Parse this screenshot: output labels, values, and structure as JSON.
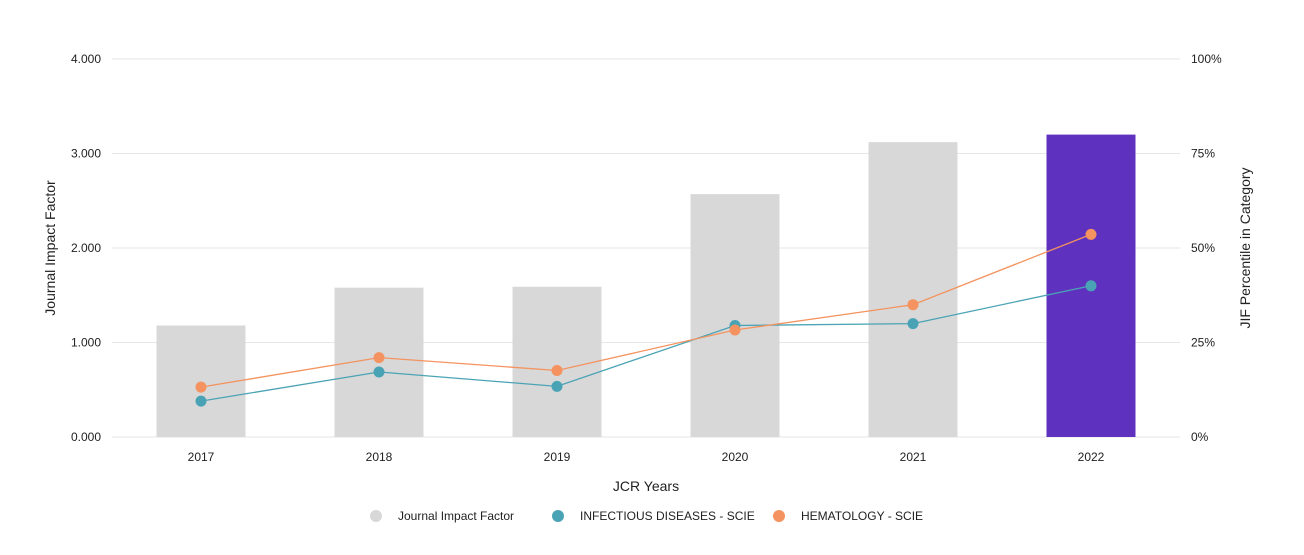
{
  "chart_data": {
    "type": "bar",
    "categories": [
      "2017",
      "2018",
      "2019",
      "2020",
      "2021",
      "2022"
    ],
    "xlabel": "JCR Years",
    "ylabel": "Journal Impact Factor",
    "y2label": "JIF Percentile in Category",
    "ylim": [
      0,
      4
    ],
    "y2lim": [
      0,
      100
    ],
    "yticks": [
      "0.000",
      "1.000",
      "2.000",
      "3.000",
      "4.000"
    ],
    "y2ticks": [
      "0%",
      "25%",
      "50%",
      "75%",
      "100%"
    ],
    "grid": true,
    "legend_position": "bottom",
    "bars": {
      "name": "Journal Impact Factor",
      "values": [
        1.18,
        1.58,
        1.59,
        2.57,
        3.12,
        3.2
      ],
      "color": "#d8d8d8",
      "highlight_color": "#5e31bf",
      "highlight_index": 5
    },
    "series": [
      {
        "name": "INFECTIOUS DISEASES - SCIE",
        "axis": "right",
        "values": [
          9.5,
          17.2,
          13.4,
          29.5,
          30.0,
          40.0
        ],
        "color": "#4aa3b5"
      },
      {
        "name": "HEMATOLOGY - SCIE",
        "axis": "right",
        "values": [
          13.2,
          21.0,
          17.6,
          28.3,
          35.0,
          53.6
        ],
        "color": "#f4935f"
      }
    ]
  },
  "legend_marker_color": "#d8d8d8"
}
